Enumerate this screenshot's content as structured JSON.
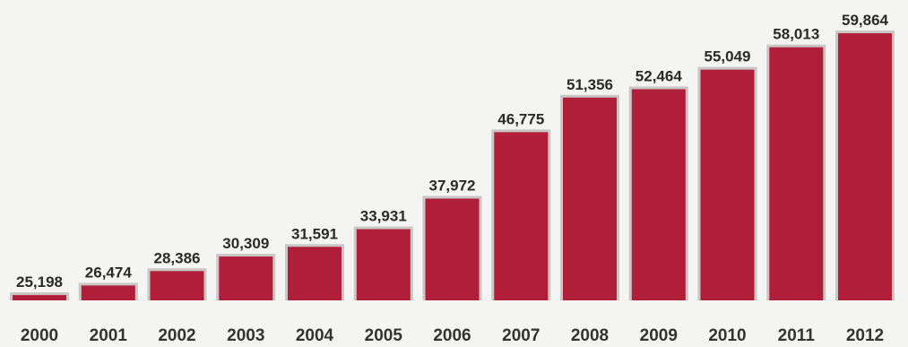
{
  "chart_data": {
    "type": "bar",
    "title": "",
    "xlabel": "",
    "ylabel": "",
    "categories": [
      "2000",
      "2001",
      "2002",
      "2003",
      "2004",
      "2005",
      "2006",
      "2007",
      "2008",
      "2009",
      "2010",
      "2011",
      "2012"
    ],
    "values": [
      25198,
      26474,
      28386,
      30309,
      31591,
      33931,
      37972,
      46775,
      51356,
      52464,
      55049,
      58013,
      59864
    ],
    "value_labels": [
      "25,198",
      "26,474",
      "28,386",
      "30,309",
      "31,591",
      "33,931",
      "37,972",
      "46,775",
      "51,356",
      "52,464",
      "55,049",
      "58,013",
      "59,864"
    ],
    "ylim": [
      24500,
      60000
    ],
    "grid": false,
    "legend": "none",
    "bar_color": "#b01e3a",
    "bar_edge_color": "#c9c6c4"
  }
}
